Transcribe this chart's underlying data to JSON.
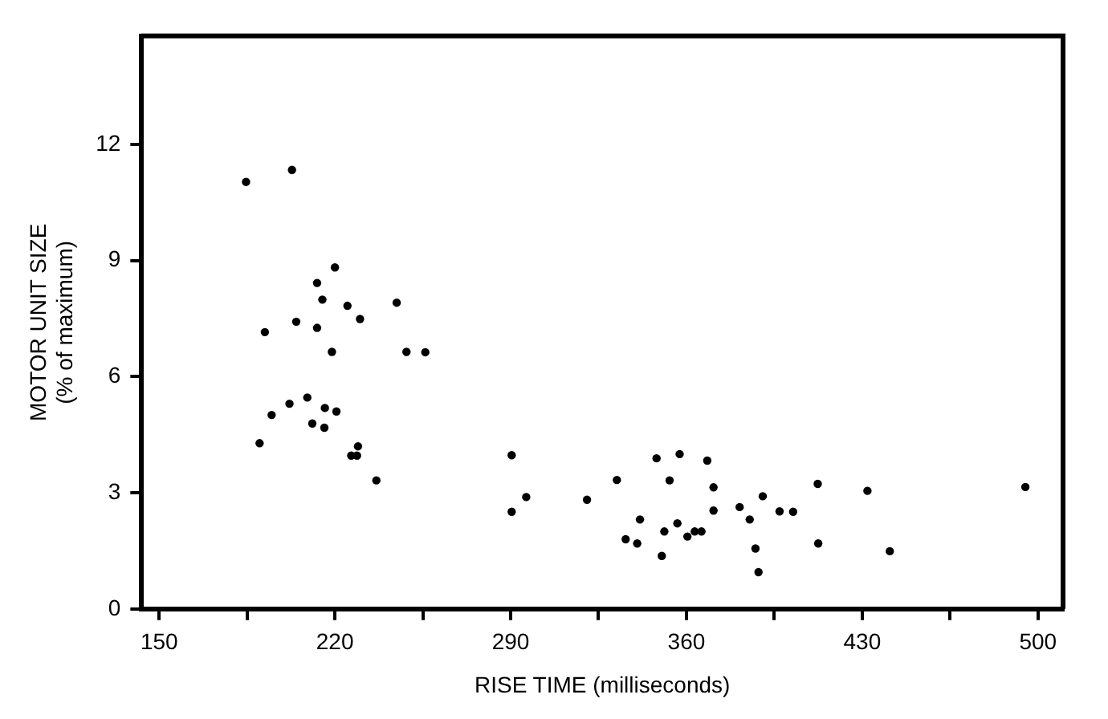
{
  "chart_data": {
    "type": "scatter",
    "xlabel": "RISE TIME (milliseconds)",
    "ylabel": "MOTOR UNIT SIZE\n(% of maximum)",
    "xlim": [
      143,
      510
    ],
    "ylim": [
      0,
      14.8
    ],
    "xticks": [
      150,
      {
        "value": 185,
        "label": null
      },
      220,
      {
        "value": 255,
        "label": null
      },
      290,
      {
        "value": 325,
        "label": null
      },
      360,
      {
        "value": 395,
        "label": null
      },
      430,
      {
        "value": 465,
        "label": null
      },
      500
    ],
    "yticks": [
      0,
      3,
      6,
      9,
      12
    ],
    "grid": false,
    "legend": false,
    "marker": "circle",
    "series": [
      {
        "color": "#000000",
        "x": [
          184.6,
          202.9,
          220,
          212.9,
          215,
          225,
          244.6,
          204.6,
          212.9,
          230,
          192.1,
          218.8,
          248.5,
          256,
          194.8,
          201.9,
          209,
          216,
          220.6,
          211,
          215.8,
          190,
          229.2,
          226.5,
          228.8,
          236.5,
          290.4,
          290.4,
          296.2,
          320.4,
          332.3,
          335.8,
          340.4,
          341.5,
          348.1,
          353.3,
          351.2,
          350.2,
          357.3,
          356.4,
          360.4,
          363.3,
          366,
          368.3,
          370.8,
          370.8,
          381.2,
          385.2,
          390.4,
          387.5,
          388.7,
          397.1,
          402.5,
          412.3,
          412.5,
          432.1,
          441,
          495
        ],
        "values": [
          11.03,
          11.34,
          8.82,
          8.42,
          7.99,
          7.83,
          7.91,
          7.42,
          7.26,
          7.49,
          7.15,
          6.64,
          6.64,
          6.63,
          5.01,
          5.3,
          5.46,
          5.19,
          5.1,
          4.79,
          4.68,
          4.28,
          4.2,
          3.96,
          3.96,
          3.32,
          3.97,
          2.51,
          2.89,
          2.82,
          3.33,
          1.8,
          1.69,
          2.31,
          3.89,
          3.32,
          2,
          1.37,
          4,
          2.21,
          1.87,
          2,
          2,
          3.83,
          3.14,
          2.54,
          2.63,
          2.31,
          2.91,
          1.56,
          0.95,
          2.52,
          2.51,
          3.23,
          1.69,
          3.05,
          1.49,
          3.15
        ]
      }
    ]
  }
}
